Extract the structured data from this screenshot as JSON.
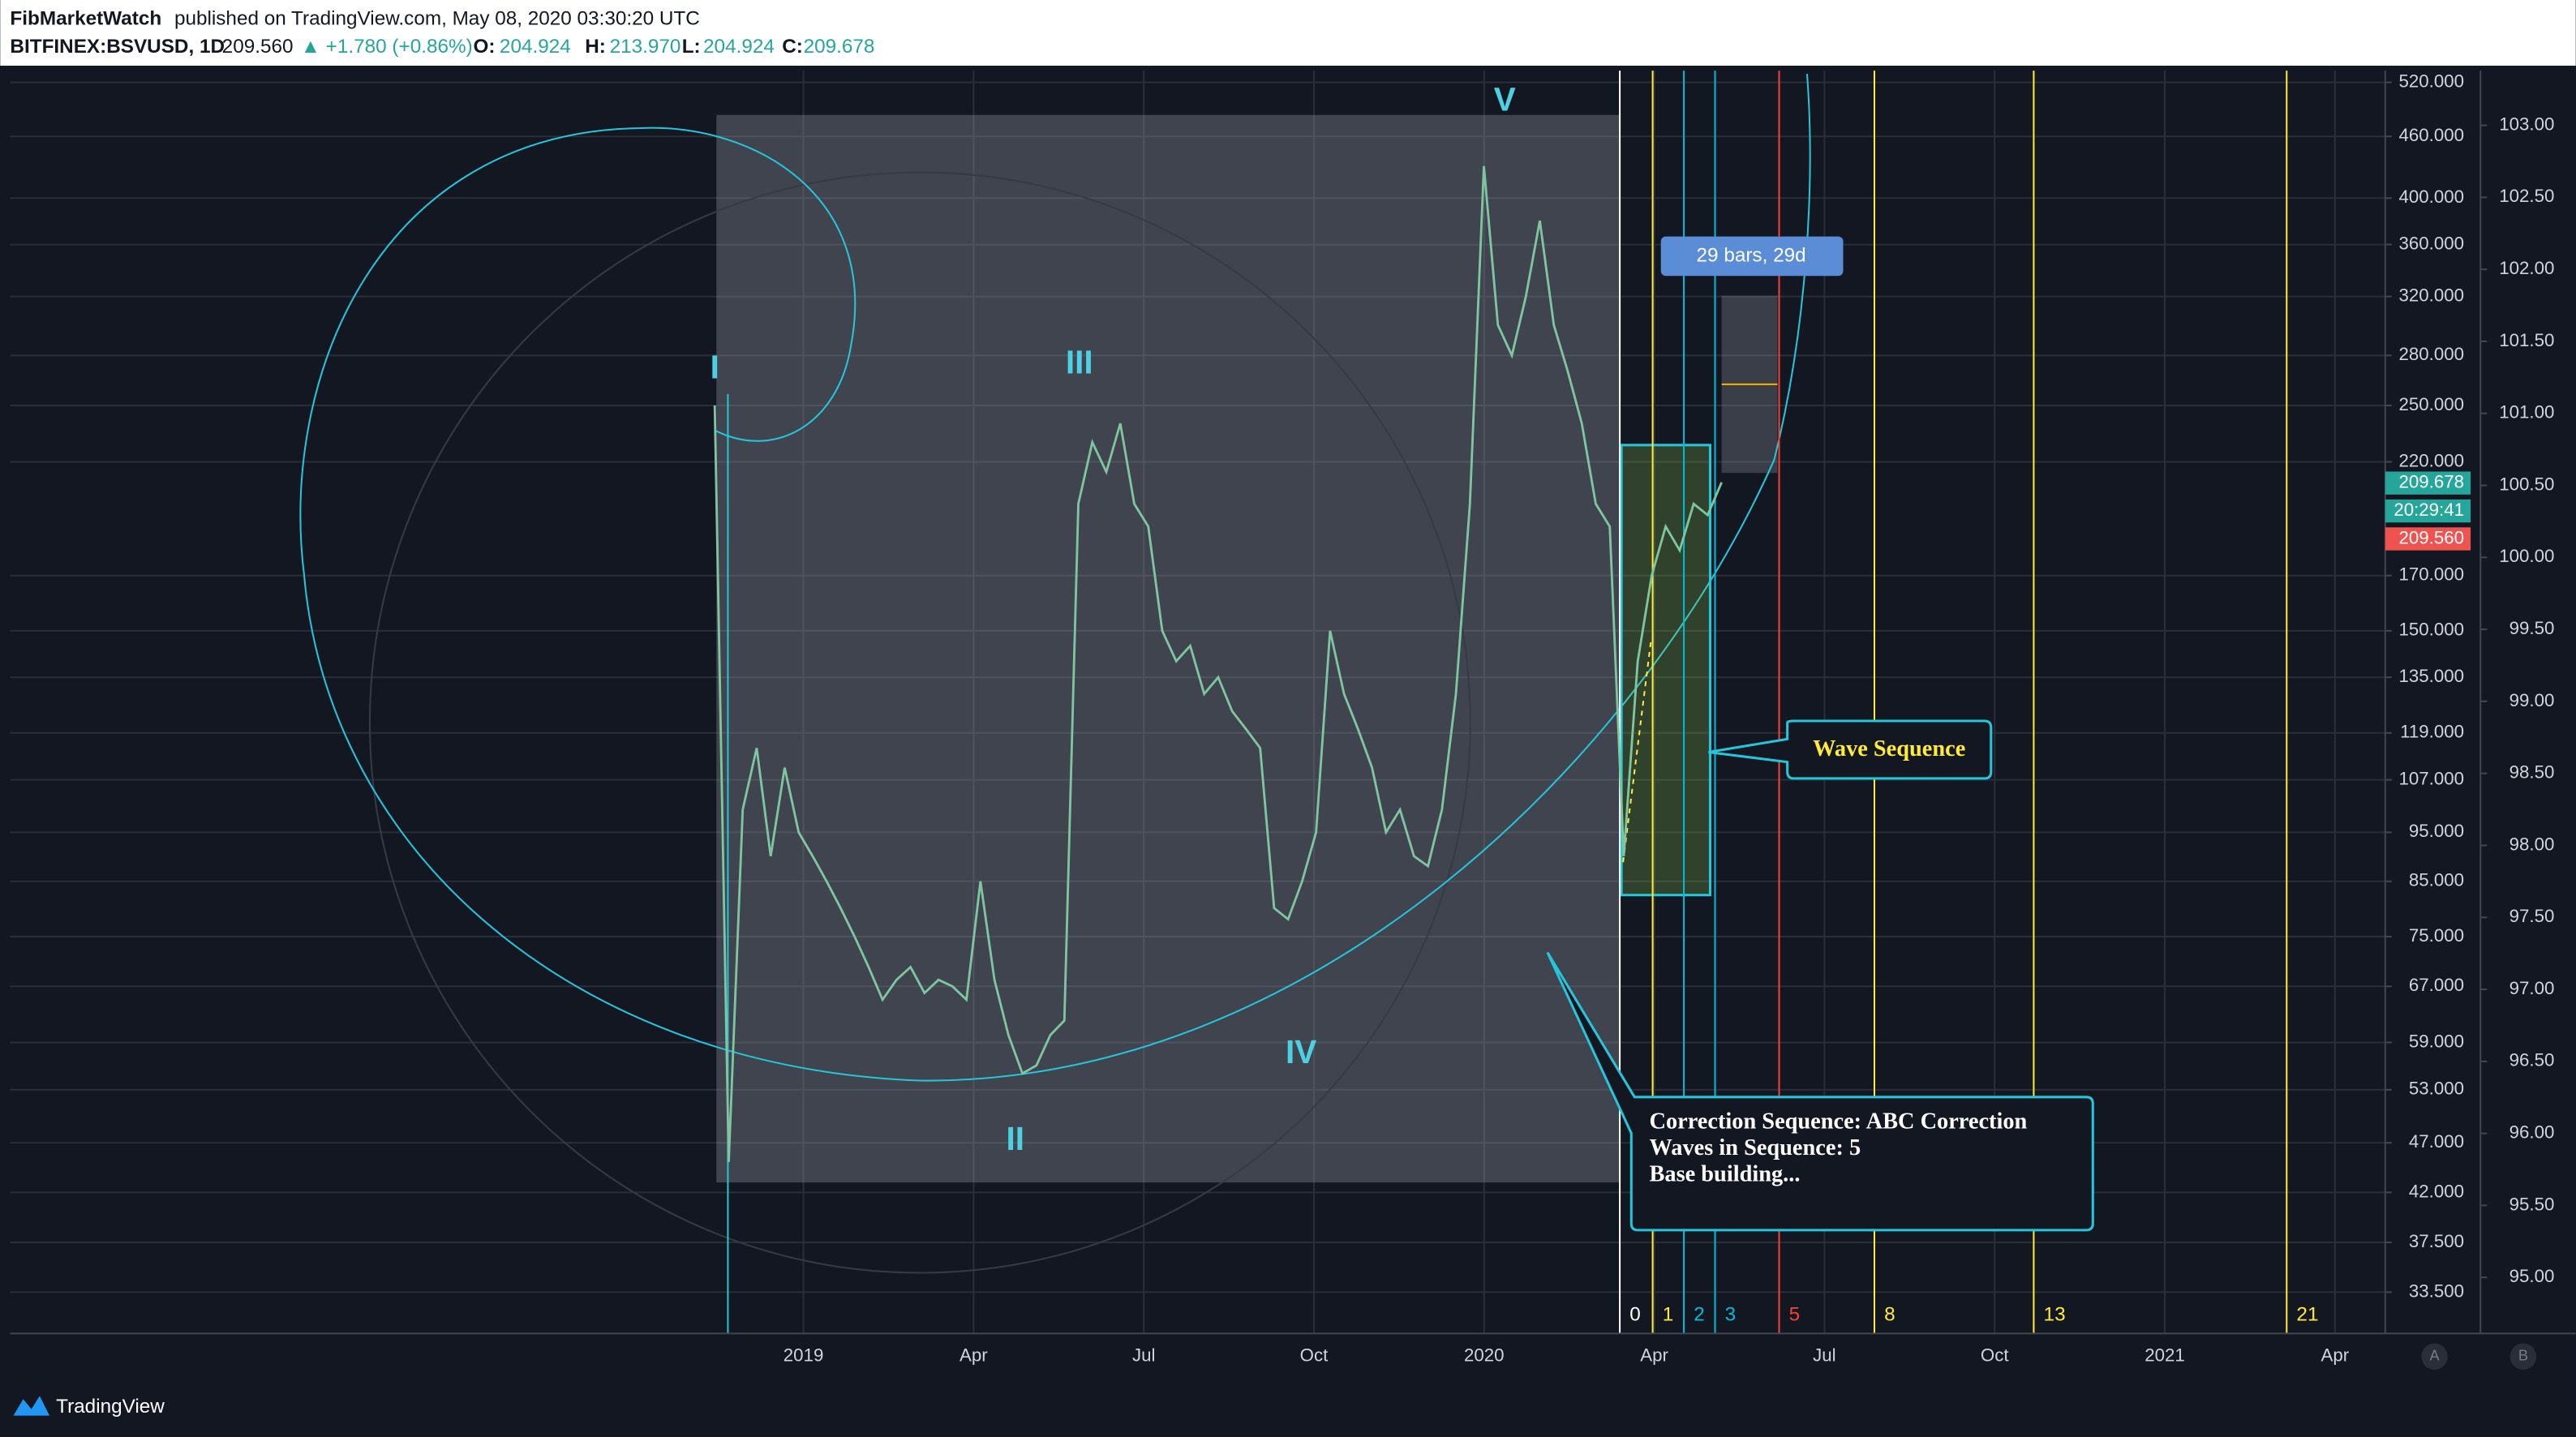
{
  "header": {
    "author": "FibMarketWatch",
    "published": "published on TradingView.com, May 08, 2020 03:30:20 UTC",
    "symbol": "BITFINEX:BSVUSD, 1D",
    "price": "209.560",
    "change": "▲ +1.780 (+0.86%)",
    "o_label": "O:",
    "o": "204.924",
    "h_label": "H:",
    "h": "213.970",
    "l_label": "L:",
    "l": "204.924",
    "c_label": "C:",
    "c": "209.678"
  },
  "chart_data": {
    "type": "line",
    "color": "#7fc6a0",
    "log_scale": true,
    "grid": true,
    "values": [
      250,
      45,
      100,
      115,
      90,
      110,
      95,
      90,
      85,
      80,
      75,
      70,
      65,
      68,
      70,
      66,
      68,
      67,
      65,
      85,
      68,
      60,
      55,
      56,
      60,
      62,
      200,
      230,
      215,
      240,
      200,
      190,
      150,
      140,
      145,
      130,
      135,
      125,
      120,
      115,
      80,
      78,
      85,
      95,
      150,
      130,
      120,
      110,
      95,
      100,
      90,
      88,
      100,
      130,
      200,
      430,
      300,
      280,
      320,
      380,
      300,
      270,
      240,
      200,
      190,
      90,
      140,
      170,
      190,
      180,
      200,
      195,
      210
    ],
    "ylim": [
      30.5,
      534
    ],
    "yticks": [
      {
        "value": 520,
        "label": "520.000"
      },
      {
        "value": 460,
        "label": "460.000"
      },
      {
        "value": 400,
        "label": "400.000"
      },
      {
        "value": 360,
        "label": "360.000"
      },
      {
        "value": 320,
        "label": "320.000"
      },
      {
        "value": 280,
        "label": "280.000"
      },
      {
        "value": 250,
        "label": "250.000"
      },
      {
        "value": 220,
        "label": "220.000"
      },
      {
        "value": 170,
        "label": "170.000"
      },
      {
        "value": 150,
        "label": "150.000"
      },
      {
        "value": 135,
        "label": "135.000"
      },
      {
        "value": 119,
        "label": "119.000"
      },
      {
        "value": 107,
        "label": "107.000"
      },
      {
        "value": 95,
        "label": "95.000"
      },
      {
        "value": 85,
        "label": "85.000"
      },
      {
        "value": 75,
        "label": "75.000"
      },
      {
        "value": 67,
        "label": "67.000"
      },
      {
        "value": 59,
        "label": "59.000"
      },
      {
        "value": 53,
        "label": "53.000"
      },
      {
        "value": 47,
        "label": "47.000"
      },
      {
        "value": 42,
        "label": "42.000"
      },
      {
        "value": 37.5,
        "label": "37.500"
      },
      {
        "value": 33.5,
        "label": "33.500"
      }
    ],
    "y2lim": [
      94.61,
      103.38
    ],
    "y2ticks": [
      {
        "value": 103,
        "label": "103.00"
      },
      {
        "value": 102.5,
        "label": "102.50"
      },
      {
        "value": 102,
        "label": "102.00"
      },
      {
        "value": 101.5,
        "label": "101.50"
      },
      {
        "value": 101,
        "label": "101.00"
      },
      {
        "value": 100.5,
        "label": "100.50"
      },
      {
        "value": 100,
        "label": "100.00"
      },
      {
        "value": 99.5,
        "label": "99.50"
      },
      {
        "value": 99,
        "label": "99.00"
      },
      {
        "value": 98.5,
        "label": "98.50"
      },
      {
        "value": 98,
        "label": "98.00"
      },
      {
        "value": 97.5,
        "label": "97.50"
      },
      {
        "value": 97,
        "label": "97.00"
      },
      {
        "value": 96.5,
        "label": "96.50"
      },
      {
        "value": 96,
        "label": "96.00"
      },
      {
        "value": 95.5,
        "label": "95.50"
      },
      {
        "value": 95,
        "label": "95.00"
      }
    ],
    "xtick_labels": [
      "2019",
      "Apr",
      "Jul",
      "Oct",
      "2020",
      "Apr",
      "Jul",
      "Oct",
      "2021",
      "Apr"
    ],
    "price_marks": {
      "values": [
        209.678,
        209.56
      ],
      "value_labels": [
        "209.678",
        "209.560"
      ],
      "colors": [
        "#26a69a",
        "#ef5350"
      ],
      "countdown": "20:29:41"
    },
    "wave_labels": [
      "I",
      "II",
      "III",
      "IV",
      "V"
    ],
    "fib_time": {
      "labels": [
        0,
        1,
        2,
        3,
        5,
        8,
        13,
        21
      ],
      "colors": [
        "#ffffff",
        "#ffeb3b",
        "#00bcd4",
        "#00bcd4",
        "#f44336",
        "#ffeb3b",
        "#ffeb3b",
        "#ffeb3b"
      ]
    },
    "bars_label": "29 bars, 29d",
    "wave_sequence": "Wave Sequence",
    "correction": [
      "Correction Sequence: ABC Correction",
      "Waves in Sequence: 5",
      "Base building..."
    ]
  },
  "axis_buttons": [
    "A",
    "B"
  ],
  "footer": "TradingView"
}
